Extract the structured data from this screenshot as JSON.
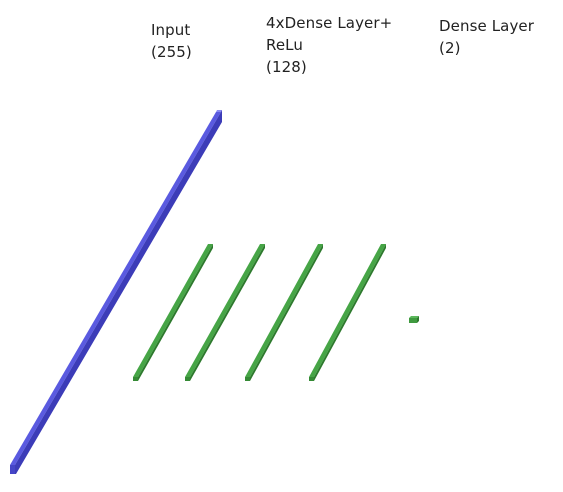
{
  "layers": [
    {
      "id": "input",
      "label": "Input\n(255)",
      "units": 255,
      "color": "#5a5ae0"
    },
    {
      "id": "dense-relu",
      "label": "4xDense Layer+\nReLu\n(128)",
      "units": 128,
      "repeat": 4,
      "color": "#3f9a3f"
    },
    {
      "id": "dense-out",
      "label": "Dense Layer\n(2)",
      "units": 2,
      "color": "#3f9a3f"
    }
  ]
}
